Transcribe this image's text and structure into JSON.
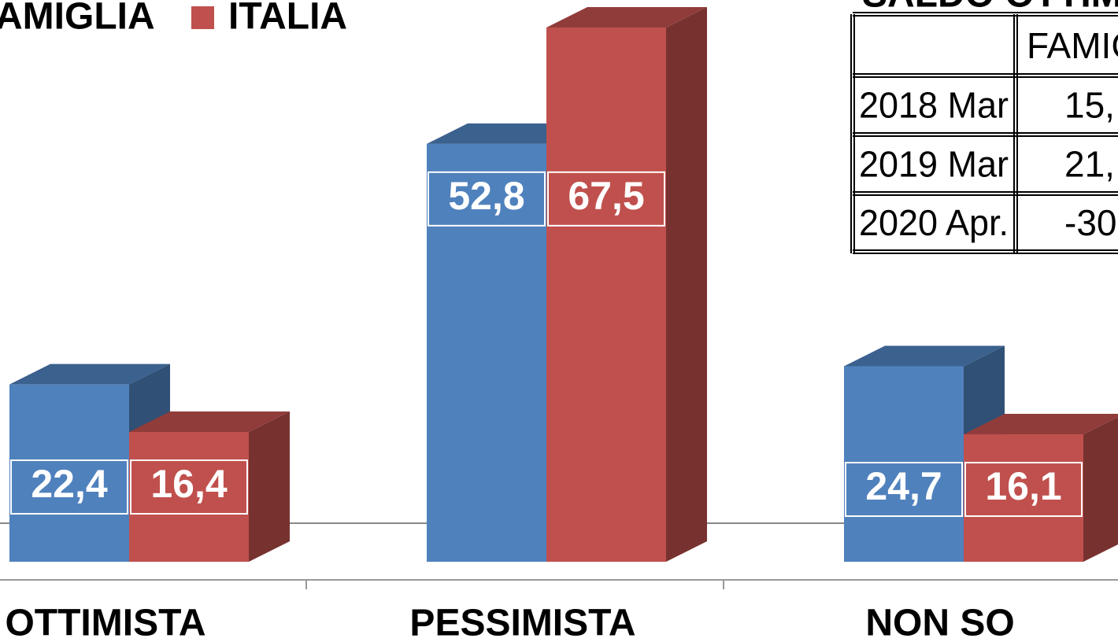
{
  "chart_data": {
    "type": "bar3d",
    "categories": [
      "OTTIMISTA",
      "PESSIMISTA",
      "NON SO"
    ],
    "series": [
      {
        "name": "AMIGLIA",
        "color": "#4f81bd",
        "values": [
          22.4,
          52.8,
          24.7
        ],
        "value_labels": [
          "22,4",
          "52,8",
          "24,7"
        ]
      },
      {
        "name": "ITALIA",
        "color": "#c0504d",
        "values": [
          16.4,
          67.5,
          16.1
        ],
        "value_labels": [
          "16,4",
          "67,5",
          "16,1"
        ]
      }
    ]
  },
  "table": {
    "title": "SALDO OTTIMIS",
    "header": [
      "FAMIG"
    ],
    "rows": [
      [
        "2018 Mar",
        "15,"
      ],
      [
        "2019 Mar",
        "21,"
      ],
      [
        "2020 Apr.",
        "-30"
      ]
    ]
  }
}
